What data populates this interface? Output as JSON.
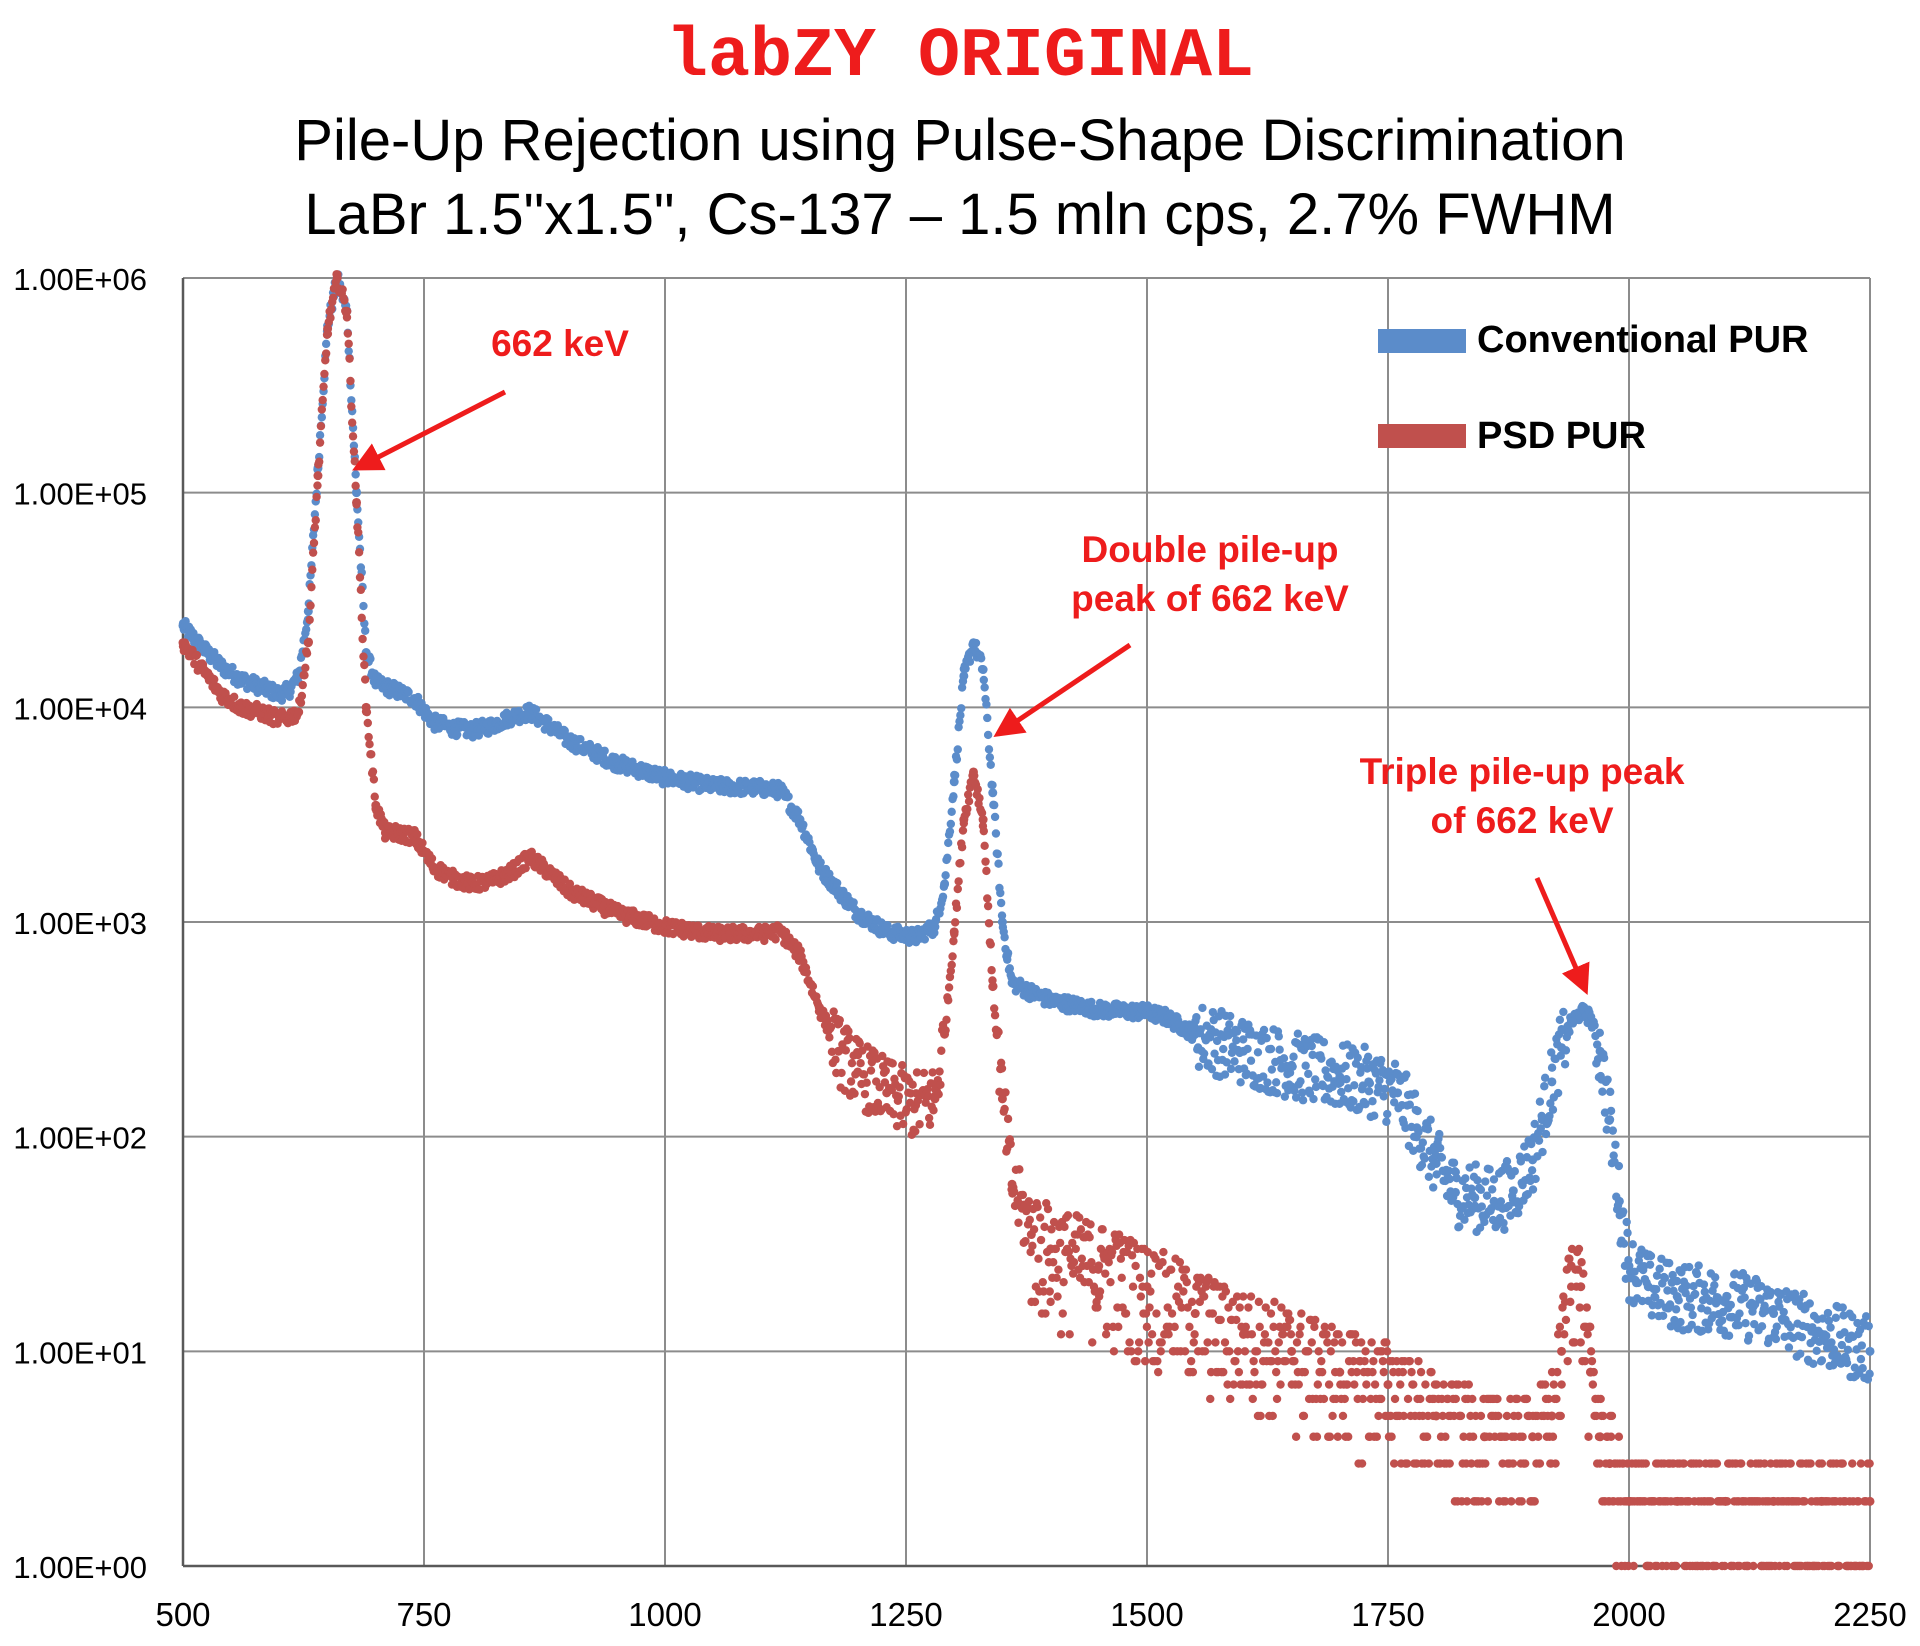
{
  "brand": "labZY ORIGINAL",
  "colors": {
    "brand": "#ee1c1c",
    "conventional": "#5b8cca",
    "psd": "#c0504d",
    "grid": "#8c8c8c",
    "annotation": "#ee1c1c"
  },
  "chart_data": {
    "type": "scatter",
    "title": "Pile-Up Rejection using Pulse-Shape Discrimination",
    "subtitle": "LaBr 1.5\"x1.5\", Cs-137 – 1.5 mln cps, 2.7% FWHM",
    "xlabel": "",
    "ylabel": "",
    "xlim": [
      500,
      2250
    ],
    "ylim": [
      1,
      1000000
    ],
    "yscale": "log",
    "grid": true,
    "legend_position": "top-right",
    "x_ticks": [
      "500",
      "750",
      "1000",
      "1250",
      "1500",
      "1750",
      "2000",
      "2250"
    ],
    "y_ticks": [
      "1.00E+06",
      "1.00E+05",
      "1.00E+04",
      "1.00E+03",
      "1.00E+02",
      "1.00E+01",
      "1.00E+00"
    ],
    "series": [
      {
        "name": "Conventional PUR",
        "x": [
          500,
          520,
          540,
          560,
          580,
          600,
          610,
          620,
          630,
          640,
          650,
          660,
          670,
          680,
          690,
          700,
          720,
          740,
          760,
          780,
          800,
          820,
          840,
          860,
          880,
          900,
          950,
          1000,
          1050,
          1100,
          1120,
          1140,
          1160,
          1180,
          1200,
          1230,
          1260,
          1280,
          1290,
          1300,
          1310,
          1320,
          1330,
          1340,
          1350,
          1355,
          1360,
          1380,
          1400,
          1450,
          1500,
          1520,
          1550,
          1600,
          1650,
          1700,
          1730,
          1760,
          1780,
          1800,
          1820,
          1840,
          1860,
          1880,
          1900,
          1910,
          1920,
          1930,
          1940,
          1950,
          1960,
          1970,
          1980,
          1990,
          2000,
          2020,
          2050,
          2100,
          2150,
          2200,
          2250
        ],
        "y": [
          24000,
          19000,
          15500,
          13500,
          12500,
          11500,
          12000,
          14000,
          28000,
          130000,
          600000,
          1000000,
          700000,
          100000,
          18000,
          13000,
          12000,
          11000,
          8500,
          8000,
          7800,
          8200,
          9000,
          9500,
          8200,
          7000,
          5500,
          4700,
          4300,
          4200,
          4100,
          3000,
          1800,
          1400,
          1100,
          900,
          850,
          950,
          1500,
          4500,
          14000,
          20000,
          15000,
          4000,
          1000,
          700,
          520,
          470,
          430,
          390,
          380,
          360,
          300,
          250,
          215,
          190,
          180,
          160,
          110,
          75,
          55,
          52,
          50,
          56,
          78,
          120,
          180,
          260,
          340,
          380,
          360,
          250,
          120,
          50,
          25,
          20,
          18,
          17,
          15,
          12,
          10
        ]
      },
      {
        "name": "PSD PUR",
        "x": [
          500,
          520,
          540,
          560,
          580,
          600,
          610,
          620,
          630,
          640,
          650,
          660,
          670,
          680,
          690,
          700,
          710,
          720,
          740,
          760,
          780,
          800,
          820,
          840,
          860,
          880,
          900,
          950,
          1000,
          1050,
          1100,
          1120,
          1140,
          1160,
          1180,
          1200,
          1230,
          1260,
          1280,
          1290,
          1300,
          1310,
          1320,
          1330,
          1340,
          1350,
          1360,
          1380,
          1400,
          1450,
          1500,
          1550,
          1600,
          1650,
          1700,
          1750,
          1800,
          1850,
          1900,
          1920,
          1930,
          1940,
          1950,
          1960,
          1970,
          1980,
          2000,
          2050,
          2100,
          2150,
          2200,
          2250
        ],
        "y": [
          20000,
          15000,
          11500,
          10000,
          9500,
          8800,
          9000,
          9500,
          20000,
          120000,
          580000,
          1000000,
          700000,
          90000,
          10000,
          3500,
          2600,
          2600,
          2500,
          1800,
          1600,
          1500,
          1550,
          1700,
          2000,
          1700,
          1400,
          1100,
          950,
          880,
          880,
          900,
          700,
          400,
          250,
          200,
          160,
          140,
          150,
          300,
          900,
          3000,
          5000,
          3000,
          500,
          150,
          60,
          35,
          30,
          25,
          20,
          15,
          12,
          10,
          8,
          7,
          5,
          4,
          4,
          5,
          10,
          25,
          20,
          8,
          4,
          3,
          2,
          2,
          2,
          2,
          2,
          2
        ]
      }
    ],
    "annotations": [
      {
        "lines": [
          "662 keV"
        ],
        "target_x": 680,
        "target_y": 130000
      },
      {
        "lines": [
          "Double pile-up",
          "peak of 662 keV"
        ],
        "target_x": 1345,
        "target_y": 7500
      },
      {
        "lines": [
          "Triple pile-up peak",
          "of 662 keV"
        ],
        "target_x": 1955,
        "target_y": 480
      }
    ]
  }
}
